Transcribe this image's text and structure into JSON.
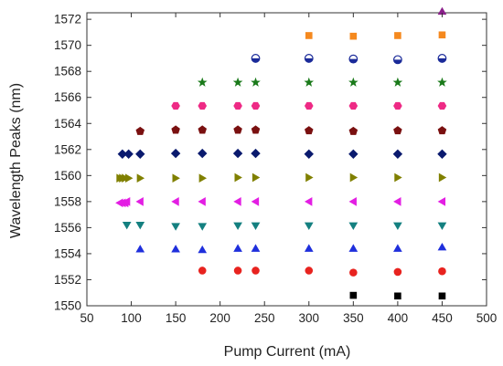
{
  "chart_data": {
    "type": "scatter",
    "title": "",
    "xlabel": "Pump Current (mA)",
    "ylabel": "Wavelength Peaks (nm)",
    "xlim": [
      50,
      500
    ],
    "ylim": [
      1550,
      1572.5
    ],
    "xticks": [
      50,
      100,
      150,
      200,
      250,
      300,
      350,
      400,
      450,
      500
    ],
    "yticks": [
      1550,
      1552,
      1554,
      1556,
      1558,
      1560,
      1562,
      1564,
      1566,
      1568,
      1570,
      1572
    ],
    "grid": false,
    "legend": "none",
    "series": [
      {
        "marker": "square",
        "color": "#000000",
        "points": [
          [
            350,
            1550.8
          ],
          [
            400,
            1550.75
          ],
          [
            450,
            1550.75
          ]
        ]
      },
      {
        "marker": "circle",
        "color": "#e8231f",
        "points": [
          [
            180,
            1552.7
          ],
          [
            220,
            1552.7
          ],
          [
            240,
            1552.7
          ],
          [
            300,
            1552.7
          ],
          [
            350,
            1552.55
          ],
          [
            400,
            1552.6
          ],
          [
            450,
            1552.65
          ]
        ]
      },
      {
        "marker": "triangle-up",
        "color": "#1f2fdc",
        "points": [
          [
            110,
            1554.35
          ],
          [
            150,
            1554.35
          ],
          [
            180,
            1554.3
          ],
          [
            220,
            1554.4
          ],
          [
            240,
            1554.4
          ],
          [
            300,
            1554.4
          ],
          [
            350,
            1554.4
          ],
          [
            400,
            1554.4
          ],
          [
            450,
            1554.5
          ]
        ]
      },
      {
        "marker": "triangle-down",
        "color": "#148080",
        "points": [
          [
            95,
            1556.2
          ],
          [
            110,
            1556.2
          ],
          [
            150,
            1556.1
          ],
          [
            180,
            1556.1
          ],
          [
            220,
            1556.15
          ],
          [
            240,
            1556.15
          ],
          [
            300,
            1556.15
          ],
          [
            350,
            1556.15
          ],
          [
            400,
            1556.15
          ],
          [
            450,
            1556.15
          ]
        ]
      },
      {
        "marker": "triangle-left",
        "color": "#e31ee3",
        "points": [
          [
            87,
            1557.9
          ],
          [
            90,
            1557.9
          ],
          [
            93,
            1557.9
          ],
          [
            95,
            1558.0
          ],
          [
            110,
            1558.0
          ],
          [
            150,
            1558.0
          ],
          [
            180,
            1558.0
          ],
          [
            220,
            1558.0
          ],
          [
            240,
            1558.0
          ],
          [
            300,
            1558.0
          ],
          [
            350,
            1558.0
          ],
          [
            400,
            1558.0
          ],
          [
            450,
            1558.0
          ]
        ]
      },
      {
        "marker": "triangle-right",
        "color": "#808000",
        "points": [
          [
            87,
            1559.8
          ],
          [
            90,
            1559.8
          ],
          [
            93,
            1559.8
          ],
          [
            97,
            1559.8
          ],
          [
            110,
            1559.8
          ],
          [
            150,
            1559.8
          ],
          [
            180,
            1559.8
          ],
          [
            220,
            1559.85
          ],
          [
            240,
            1559.85
          ],
          [
            300,
            1559.85
          ],
          [
            350,
            1559.85
          ],
          [
            400,
            1559.85
          ],
          [
            450,
            1559.85
          ]
        ]
      },
      {
        "marker": "diamond",
        "color": "#0a1a6e",
        "points": [
          [
            90,
            1561.65
          ],
          [
            97,
            1561.65
          ],
          [
            110,
            1561.65
          ],
          [
            150,
            1561.7
          ],
          [
            180,
            1561.7
          ],
          [
            220,
            1561.7
          ],
          [
            240,
            1561.7
          ],
          [
            300,
            1561.65
          ],
          [
            350,
            1561.65
          ],
          [
            400,
            1561.65
          ],
          [
            450,
            1561.65
          ]
        ]
      },
      {
        "marker": "pentagon",
        "color": "#7a1010",
        "points": [
          [
            110,
            1563.4
          ],
          [
            150,
            1563.5
          ],
          [
            180,
            1563.5
          ],
          [
            220,
            1563.5
          ],
          [
            240,
            1563.5
          ],
          [
            300,
            1563.45
          ],
          [
            350,
            1563.4
          ],
          [
            400,
            1563.45
          ],
          [
            450,
            1563.45
          ]
        ]
      },
      {
        "marker": "hexagon",
        "color": "#ee2a85",
        "points": [
          [
            150,
            1565.35
          ],
          [
            180,
            1565.35
          ],
          [
            220,
            1565.35
          ],
          [
            240,
            1565.35
          ],
          [
            300,
            1565.35
          ],
          [
            350,
            1565.35
          ],
          [
            400,
            1565.35
          ],
          [
            450,
            1565.35
          ]
        ]
      },
      {
        "marker": "star",
        "color": "#1a7a1a",
        "points": [
          [
            180,
            1567.15
          ],
          [
            220,
            1567.15
          ],
          [
            240,
            1567.15
          ],
          [
            300,
            1567.15
          ],
          [
            350,
            1567.15
          ],
          [
            400,
            1567.15
          ],
          [
            450,
            1567.15
          ]
        ]
      },
      {
        "marker": "half-circle",
        "color": "#1a2a99",
        "points": [
          [
            240,
            1569.0
          ],
          [
            300,
            1569.0
          ],
          [
            350,
            1568.95
          ],
          [
            400,
            1568.9
          ],
          [
            450,
            1569.0
          ]
        ]
      },
      {
        "marker": "square",
        "color": "#f5891e",
        "points": [
          [
            300,
            1570.75
          ],
          [
            350,
            1570.7
          ],
          [
            400,
            1570.75
          ],
          [
            450,
            1570.8
          ]
        ]
      },
      {
        "marker": "triangle-up",
        "color": "#8a1f8a",
        "points": [
          [
            450,
            1572.6
          ]
        ]
      }
    ]
  }
}
